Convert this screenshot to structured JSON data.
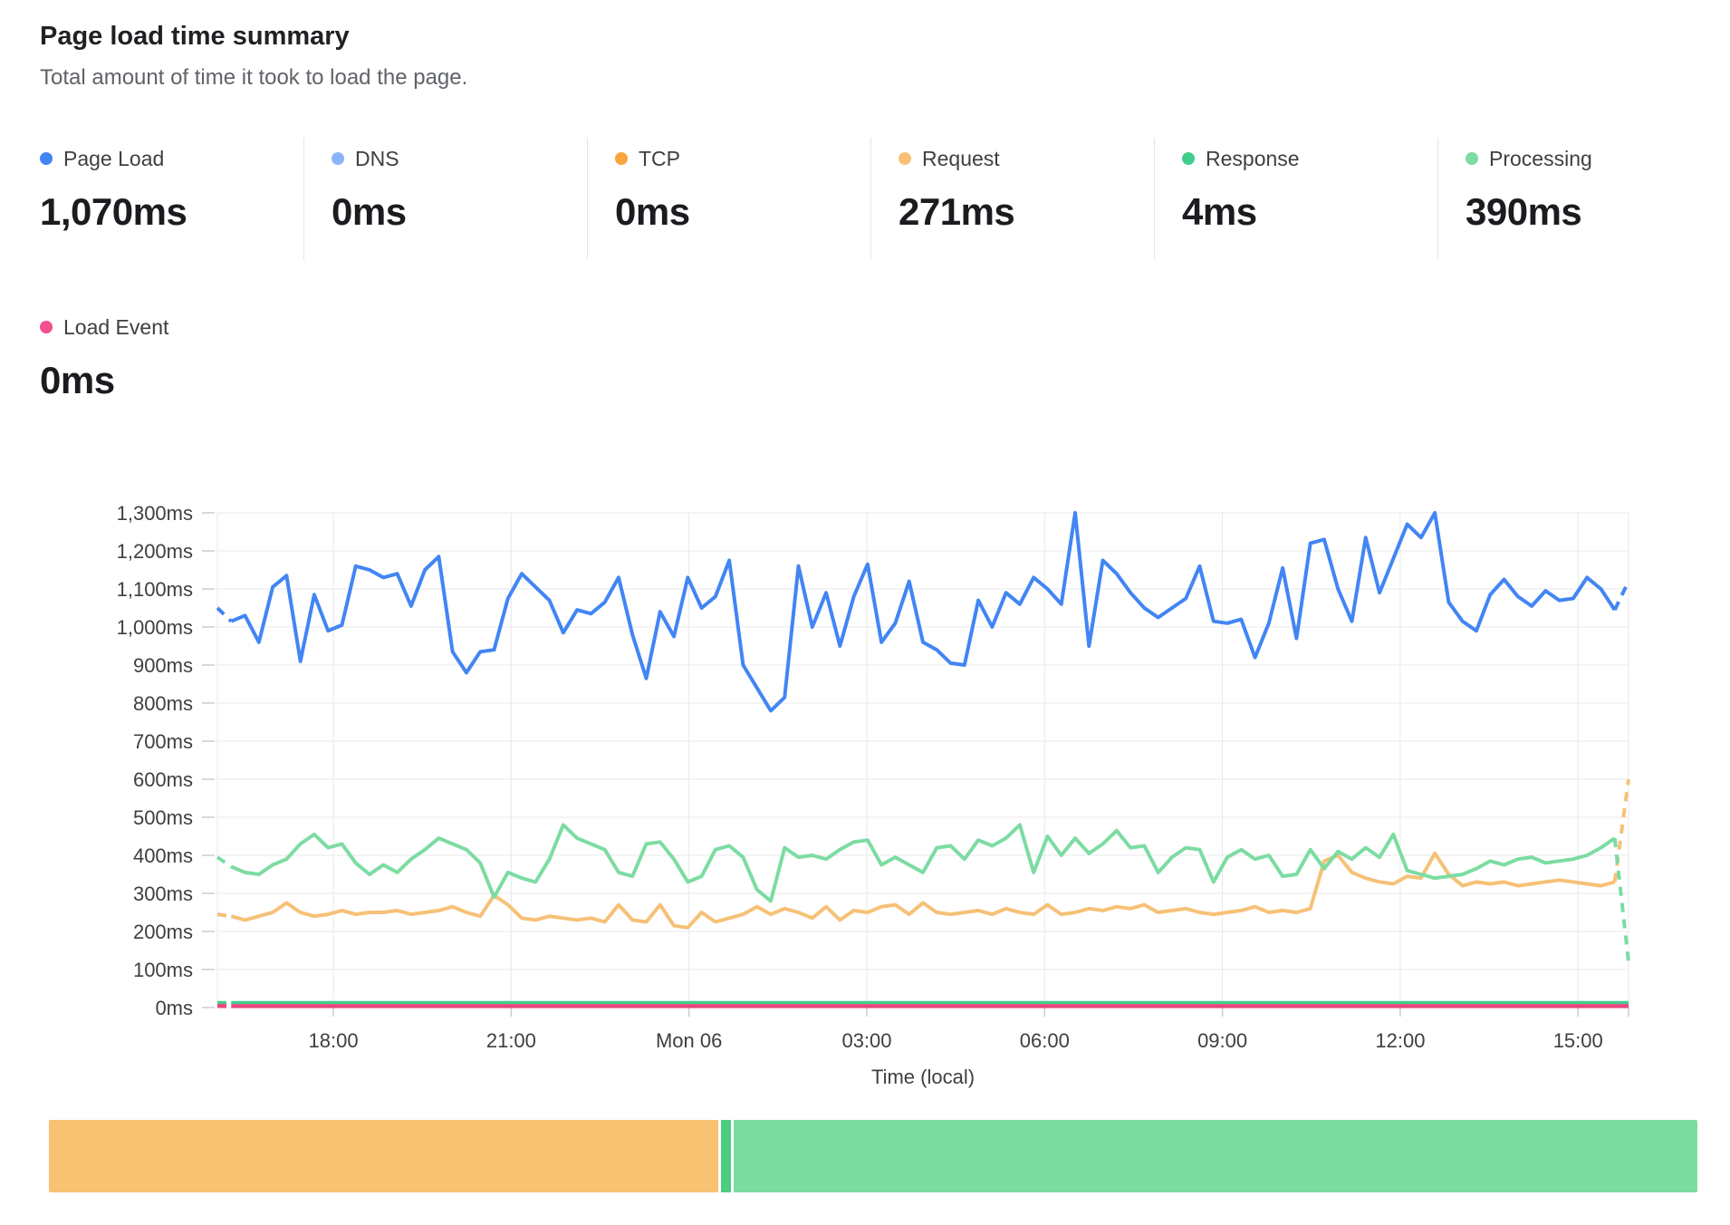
{
  "header": {
    "title": "Page load time summary",
    "subtitle": "Total amount of time it took to load the page."
  },
  "metrics": [
    {
      "label": "Page Load",
      "value": "1,070ms",
      "color": "#4285F4"
    },
    {
      "label": "DNS",
      "value": "0ms",
      "color": "#8AB4F8"
    },
    {
      "label": "TCP",
      "value": "0ms",
      "color": "#F9A43F"
    },
    {
      "label": "Request",
      "value": "271ms",
      "color": "#F6C177"
    },
    {
      "label": "Response",
      "value": "4ms",
      "color": "#41CE8C"
    },
    {
      "label": "Processing",
      "value": "390ms",
      "color": "#7CDCA2"
    },
    {
      "label": "Load Event",
      "value": "0ms",
      "color": "#F2518F"
    }
  ],
  "chart_data": {
    "type": "line",
    "title": "Page load time summary",
    "xlabel": "Time (local)",
    "ylabel": "",
    "ylim": [
      0,
      1300
    ],
    "y_tick_step": 100,
    "y_tick_suffix": "ms",
    "x_tick_labels": [
      "18:00",
      "21:00",
      "Mon 06",
      "03:00",
      "06:00",
      "09:00",
      "12:00",
      "15:00"
    ],
    "grid": true,
    "legend_position": "top",
    "layout": {
      "first_tick_frac": 0.0822,
      "tick_step_frac": 0.126
    },
    "series": [
      {
        "name": "Request",
        "color": "#F6C177",
        "width": 4,
        "dash_start": true,
        "dash_end": true,
        "values": [
          245,
          240,
          230,
          240,
          250,
          275,
          250,
          240,
          245,
          255,
          245,
          250,
          250,
          255,
          245,
          250,
          255,
          265,
          250,
          240,
          295,
          270,
          235,
          230,
          240,
          235,
          230,
          235,
          225,
          270,
          230,
          225,
          270,
          215,
          210,
          250,
          225,
          235,
          245,
          265,
          245,
          260,
          250,
          235,
          265,
          230,
          255,
          250,
          265,
          270,
          245,
          275,
          250,
          245,
          250,
          255,
          245,
          260,
          250,
          245,
          270,
          245,
          250,
          260,
          255,
          265,
          260,
          270,
          250,
          255,
          260,
          250,
          245,
          250,
          255,
          265,
          250,
          255,
          250,
          260,
          385,
          400,
          355,
          340,
          330,
          325,
          345,
          340,
          405,
          350,
          320,
          330,
          325,
          330,
          320,
          325,
          330,
          335,
          330,
          325,
          320,
          330,
          600
        ]
      },
      {
        "name": "Processing",
        "color": "#7CDCA2",
        "width": 4,
        "dash_start": true,
        "dash_end": true,
        "values": [
          395,
          370,
          355,
          350,
          375,
          390,
          430,
          455,
          420,
          430,
          380,
          350,
          375,
          355,
          390,
          415,
          445,
          430,
          415,
          380,
          290,
          355,
          340,
          330,
          390,
          480,
          445,
          430,
          415,
          355,
          345,
          430,
          435,
          390,
          330,
          345,
          415,
          425,
          395,
          310,
          280,
          420,
          395,
          400,
          390,
          415,
          435,
          440,
          375,
          395,
          375,
          355,
          420,
          425,
          390,
          440,
          425,
          445,
          480,
          355,
          450,
          400,
          445,
          405,
          430,
          465,
          420,
          425,
          355,
          395,
          420,
          415,
          330,
          395,
          415,
          390,
          400,
          345,
          350,
          415,
          365,
          410,
          390,
          420,
          395,
          455,
          360,
          350,
          340,
          345,
          350,
          365,
          385,
          375,
          390,
          395,
          380,
          385,
          390,
          400,
          420,
          445,
          120
        ]
      },
      {
        "name": "Response",
        "color": "#41CE8C",
        "width": 3.5,
        "dash_start": true,
        "dash_end": false,
        "flat_value": 13
      },
      {
        "name": "Load Event",
        "color": "#E8487F",
        "width": 4.5,
        "dash_start": true,
        "dash_end": false,
        "flat_value": 4
      },
      {
        "name": "Page Load",
        "color": "#4285F4",
        "width": 4,
        "dash_start": true,
        "dash_end": true,
        "values": [
          1050,
          1015,
          1030,
          960,
          1105,
          1135,
          910,
          1085,
          990,
          1005,
          1160,
          1150,
          1130,
          1140,
          1055,
          1150,
          1185,
          935,
          880,
          935,
          940,
          1075,
          1140,
          1105,
          1070,
          985,
          1045,
          1035,
          1065,
          1130,
          980,
          865,
          1040,
          975,
          1130,
          1050,
          1080,
          1175,
          900,
          840,
          780,
          815,
          1160,
          1000,
          1090,
          950,
          1080,
          1165,
          960,
          1010,
          1120,
          960,
          940,
          905,
          900,
          1070,
          1000,
          1090,
          1060,
          1130,
          1100,
          1060,
          1300,
          950,
          1175,
          1140,
          1090,
          1050,
          1025,
          1050,
          1075,
          1160,
          1015,
          1010,
          1020,
          920,
          1010,
          1155,
          970,
          1220,
          1230,
          1100,
          1015,
          1235,
          1090,
          1180,
          1270,
          1235,
          1300,
          1065,
          1015,
          990,
          1085,
          1125,
          1080,
          1055,
          1095,
          1070,
          1075,
          1130,
          1100,
          1045,
          1120
        ]
      }
    ]
  },
  "breakdown_bar": {
    "segments": [
      {
        "name": "Request",
        "color": "#F7C272",
        "ms": 271
      },
      {
        "name": "Response",
        "color": "#4FCB82",
        "ms": 4
      },
      {
        "name": "Processing",
        "color": "#7CDCA2",
        "ms": 390
      }
    ]
  }
}
